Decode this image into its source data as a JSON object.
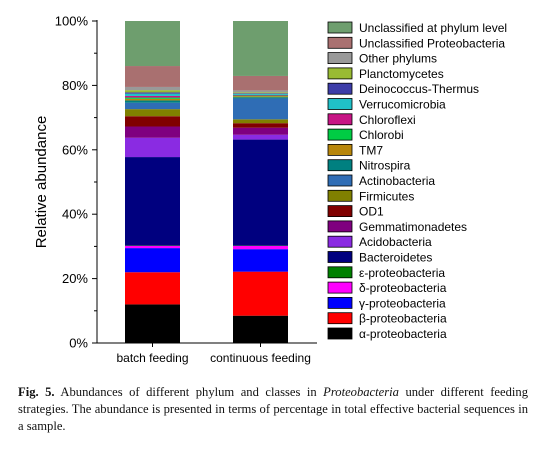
{
  "chart_data": {
    "type": "bar",
    "stacked": true,
    "orientation": "vertical",
    "ylabel": "Relative abundance",
    "xlabel": "",
    "ylim": [
      0,
      100
    ],
    "y_ticks": [
      "0%",
      "20%",
      "40%",
      "60%",
      "80%",
      "100%"
    ],
    "categories": [
      "batch feeding",
      "continuous feeding"
    ],
    "legend_position": "right",
    "series": [
      {
        "name": "α-proteobacteria",
        "color": "#000000",
        "values": [
          12.0,
          8.5
        ]
      },
      {
        "name": "β-proteobacteria",
        "color": "#ff0000",
        "values": [
          10.0,
          13.7
        ]
      },
      {
        "name": "γ-proteobacteria",
        "color": "#0000ff",
        "values": [
          7.5,
          7.0
        ]
      },
      {
        "name": "δ-proteobacteria",
        "color": "#ff00ff",
        "values": [
          0.7,
          1.0
        ]
      },
      {
        "name": "ε-proteobacteria",
        "color": "#008000",
        "values": [
          0.1,
          0.1
        ]
      },
      {
        "name": "Bacteroidetes",
        "color": "#00007f",
        "values": [
          27.5,
          33.0
        ]
      },
      {
        "name": "Acidobacteria",
        "color": "#8a2be2",
        "values": [
          6.0,
          1.5
        ]
      },
      {
        "name": "Gemmatimonadetes",
        "color": "#7f007f",
        "values": [
          3.5,
          2.2
        ]
      },
      {
        "name": "OD1",
        "color": "#800000",
        "values": [
          3.2,
          1.4
        ]
      },
      {
        "name": "Firmicutes",
        "color": "#808000",
        "values": [
          2.2,
          1.2
        ]
      },
      {
        "name": "Actinobacteria",
        "color": "#2f6db5",
        "values": [
          2.0,
          6.5
        ]
      },
      {
        "name": "Nitrospira",
        "color": "#008080",
        "values": [
          0.7,
          0.4
        ]
      },
      {
        "name": "TM7",
        "color": "#b8860b",
        "values": [
          0.5,
          0.3
        ]
      },
      {
        "name": "Chlorobi",
        "color": "#00cc44",
        "values": [
          0.4,
          0.2
        ]
      },
      {
        "name": "Chloroflexi",
        "color": "#c71585",
        "values": [
          0.5,
          0.2
        ]
      },
      {
        "name": "Verrucomicrobia",
        "color": "#20c0c8",
        "values": [
          0.7,
          0.3
        ]
      },
      {
        "name": "Deinococcus-Thermus",
        "color": "#3c3ca8",
        "values": [
          0.4,
          0.2
        ]
      },
      {
        "name": "Planctomycetes",
        "color": "#99bb33",
        "values": [
          0.7,
          0.3
        ]
      },
      {
        "name": "Other phylums",
        "color": "#999999",
        "values": [
          1.0,
          0.6
        ]
      },
      {
        "name": "Unclassified Proteobacteria",
        "color": "#a97070",
        "values": [
          6.5,
          4.5
        ]
      },
      {
        "name": "Unclassified at phylum level",
        "color": "#6e9e6e",
        "values": [
          14.0,
          17.1
        ]
      }
    ]
  },
  "caption": {
    "label": "Fig. 5.",
    "text_1": "Abundances of different phylum and classes in",
    "italic": "Proteobacteria",
    "text_2": "under different feeding strategies. The abundance is presented in terms of percentage in total effective bacterial sequences in a sample."
  }
}
